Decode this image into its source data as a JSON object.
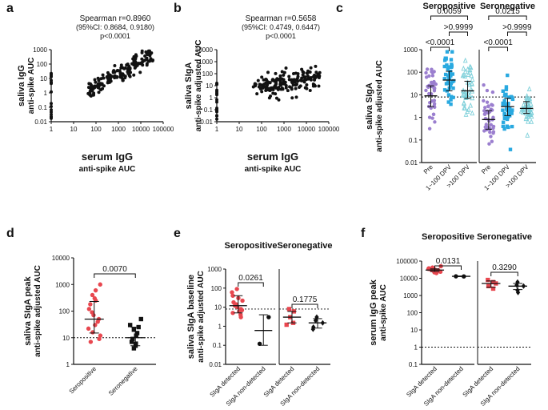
{
  "chart_data": [
    {
      "id": "a",
      "type": "scatter",
      "panel_label": "a",
      "annotation": [
        "Spearman r=0.8960",
        "(95%CI: 0.8684, 0.9180)",
        "p<0.0001"
      ],
      "xlabel": [
        "serum IgG",
        "anti-spike AUC"
      ],
      "ylabel": [
        "saliva IgG",
        "anti-spike AUC"
      ],
      "xscale": "log",
      "yscale": "log",
      "xlim": [
        1,
        100000
      ],
      "ylim": [
        0.01,
        1000
      ],
      "xticks": [
        "1",
        "10",
        "100",
        "1000",
        "10000",
        "100000"
      ],
      "yticks": [
        "0.01",
        "0.1",
        "1",
        "10",
        "100",
        "1000"
      ],
      "pattern": "positive"
    },
    {
      "id": "b",
      "type": "scatter",
      "panel_label": "b",
      "annotation": [
        "Spearman r=0.5658",
        "(95%CI: 0.4749, 0.6447)",
        "p<0.0001"
      ],
      "xlabel": [
        "serum IgG",
        "anti-spike AUC"
      ],
      "ylabel": [
        "saliva SIgA",
        "anti-spike adjusted AUC"
      ],
      "xscale": "log",
      "yscale": "log",
      "xlim": [
        1,
        100000
      ],
      "ylim": [
        0.01,
        10000
      ],
      "xticks": [
        "1",
        "10",
        "100",
        "1000",
        "10000",
        "100000"
      ],
      "yticks": [
        "0.01",
        "0.1",
        "1",
        "10",
        "100",
        "1000",
        "10000"
      ],
      "pattern": "weak"
    },
    {
      "id": "c",
      "type": "dot",
      "panel_label": "c",
      "ylabel": [
        "saliva SIgA",
        "anti-spike adjusted AUC"
      ],
      "yscale": "log",
      "ylim": [
        0.01,
        1000
      ],
      "yticks": [
        "0.01",
        "0.1",
        "1",
        "10",
        "100",
        "1000"
      ],
      "threshold": 8,
      "subpanels": [
        {
          "title": "Seropositive",
          "groups": [
            {
              "label": "Pre",
              "color": "#9b7fcf",
              "marker": "circle",
              "median": 9,
              "q1": 3,
              "q3": 25
            },
            {
              "label": "1~100 DPV",
              "color": "#29a9e0",
              "marker": "square",
              "median": 45,
              "q1": 15,
              "q3": 110
            },
            {
              "label": ">100 DPV",
              "color": "#7fd0da",
              "marker": "triangle",
              "median": 15,
              "q1": 7,
              "q3": 40
            }
          ],
          "brackets": [
            {
              "from": 0,
              "to": 2,
              "p": "0.0059",
              "level": 3
            },
            {
              "from": 1,
              "to": 2,
              "p": ">0.9999",
              "level": 2
            },
            {
              "from": 0,
              "to": 1,
              "p": "<0.0001",
              "level": 1
            }
          ]
        },
        {
          "title": "Seronegative",
          "groups": [
            {
              "label": "Pre",
              "color": "#9b7fcf",
              "marker": "circle",
              "median": 0.8,
              "q1": 0.3,
              "q3": 2
            },
            {
              "label": "1~100 DPV",
              "color": "#29a9e0",
              "marker": "square",
              "median": 3,
              "q1": 1.2,
              "q3": 7
            },
            {
              "label": ">100 DPV",
              "color": "#7fd0da",
              "marker": "triangle",
              "median": 2.5,
              "q1": 1.5,
              "q3": 5
            }
          ],
          "brackets": [
            {
              "from": 0,
              "to": 2,
              "p": "0.0215",
              "level": 3
            },
            {
              "from": 1,
              "to": 2,
              "p": ">0.9999",
              "level": 2
            },
            {
              "from": 0,
              "to": 1,
              "p": "<0.0001",
              "level": 1
            }
          ]
        }
      ]
    },
    {
      "id": "d",
      "type": "dot",
      "panel_label": "d",
      "ylabel": [
        "saliva SIgA peak",
        "anti-spike adjusted AUC"
      ],
      "yscale": "log",
      "ylim": [
        1,
        10000
      ],
      "yticks": [
        "1",
        "10",
        "100",
        "1000",
        "10000"
      ],
      "threshold": 10,
      "subpanels": [
        {
          "title": "",
          "groups": [
            {
              "label": "Seropositive",
              "color": "#e8474f",
              "marker": "circle",
              "median": 50,
              "q1": 15,
              "q3": 230,
              "values": [
                1000,
                600,
                400,
                300,
                250,
                180,
                120,
                90,
                70,
                50,
                40,
                30,
                22,
                16,
                12,
                9,
                7
              ]
            },
            {
              "label": "Seronegative",
              "color": "#111111",
              "marker": "square",
              "median": 10,
              "q1": 5,
              "q3": 25,
              "values": [
                50,
                30,
                25,
                20,
                15,
                12,
                9,
                7,
                6,
                5,
                4
              ]
            }
          ],
          "brackets": [
            {
              "from": 0,
              "to": 1,
              "p": "0.0070",
              "level": 1
            }
          ]
        }
      ]
    },
    {
      "id": "e",
      "type": "dot",
      "panel_label": "e",
      "ylabel": [
        "saliva SIgA baseline",
        "anti-spike adjusted AUC"
      ],
      "yscale": "log",
      "ylim": [
        0.01,
        1000
      ],
      "yticks": [
        "0.01",
        "0.1",
        "1",
        "10",
        "100",
        "1000"
      ],
      "threshold": 8,
      "subpanels": [
        {
          "title": "Seropositive",
          "groups": [
            {
              "label": "SIgA detected",
              "color": "#e8474f",
              "marker": "circle",
              "median": 12,
              "q1": 5,
              "q3": 40,
              "values": [
                90,
                60,
                40,
                30,
                22,
                18,
                14,
                12,
                10,
                8,
                7,
                6,
                5,
                4,
                3
              ]
            },
            {
              "label": "SIgA non-detected",
              "color": "#111111",
              "marker": "circle",
              "median": 0.6,
              "q1": 0.1,
              "q3": 4,
              "values": [
                3,
                0.12
              ]
            }
          ],
          "brackets": [
            {
              "from": 0,
              "to": 1,
              "p": "0.0261",
              "level": 1
            }
          ]
        },
        {
          "title": "Seronegative",
          "groups": [
            {
              "label": "SIgA detected",
              "color": "#e8474f",
              "marker": "square",
              "median": 3,
              "q1": 1.5,
              "q3": 6,
              "values": [
                8,
                6,
                3,
                1.5,
                1.2
              ]
            },
            {
              "label": "SIgA non-detected",
              "color": "#111111",
              "marker": "diamond",
              "median": 1.5,
              "q1": 0.8,
              "q3": 2.5,
              "values": [
                3,
                2,
                1.5,
                0.9,
                0.7
              ]
            }
          ],
          "brackets": [
            {
              "from": 0,
              "to": 1,
              "p": "0.1775",
              "level": 1
            }
          ]
        }
      ]
    },
    {
      "id": "f",
      "type": "dot",
      "panel_label": "f",
      "ylabel": [
        "serum IgG peak",
        "anti-spike AUC"
      ],
      "yscale": "log",
      "ylim": [
        0.1,
        100000
      ],
      "yticks": [
        "0.1",
        "1",
        "10",
        "100",
        "1000",
        "10000",
        "100000"
      ],
      "threshold": 1,
      "subpanels": [
        {
          "title": "Seropositive",
          "groups": [
            {
              "label": "SIgA detected",
              "color": "#e8474f",
              "marker": "circle",
              "median": 30000,
              "q1": 25000,
              "q3": 35000,
              "values": [
                50000,
                42000,
                38000,
                35000,
                32000,
                30000,
                29000,
                27000,
                25000,
                24000,
                22000,
                20000
              ]
            },
            {
              "label": "SIgA non-detected",
              "color": "#111111",
              "marker": "circle",
              "median": 13000,
              "q1": 12500,
              "q3": 13500,
              "values": [
                13000,
                12800
              ]
            }
          ],
          "brackets": [
            {
              "from": 0,
              "to": 1,
              "p": "0.0131",
              "level": 1
            }
          ]
        },
        {
          "title": "Seronegative",
          "groups": [
            {
              "label": "SIgA detected",
              "color": "#e8474f",
              "marker": "square",
              "median": 5000,
              "q1": 3000,
              "q3": 7000,
              "values": [
                8000,
                6000,
                5000,
                3500,
                2500
              ]
            },
            {
              "label": "SIgA non-detected",
              "color": "#111111",
              "marker": "diamond",
              "median": 3500,
              "q1": 2200,
              "q3": 5000,
              "values": [
                6000,
                4000,
                3500,
                2000,
                1500
              ]
            }
          ],
          "brackets": [
            {
              "from": 0,
              "to": 1,
              "p": "0.3290",
              "level": 1
            }
          ]
        }
      ]
    }
  ]
}
